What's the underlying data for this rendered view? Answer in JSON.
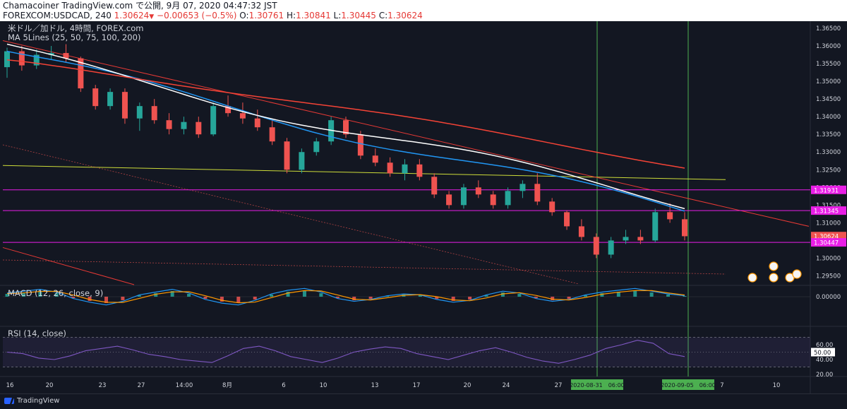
{
  "header": {
    "line1": "Chamacoiner TradingView.com で公開, 9月 07, 2020 04:47:32 JST",
    "symbol": "FOREXCOM:USDCAD, 240",
    "last": "1.30624",
    "arrow": "▼",
    "change": "−0.00653 (−0.5%)",
    "o_label": "O:",
    "o_value": "1.30761",
    "h_label": "H:",
    "h_value": "1.30841",
    "l_label": "L:",
    "l_value": "1.30445",
    "c_label": "C:",
    "c_value": "1.30624"
  },
  "legend": {
    "title": "米ドル／加ドル, 4時間, FOREX.com",
    "ma": "MA 5Lines (25, 50, 75, 100, 200)",
    "macd": "MACD (12, 26, close, 9)",
    "rsi": "RSI (14, close)"
  },
  "footer": {
    "brand": "TradingView"
  },
  "chart_data": {
    "type": "candlestick",
    "price_axis": {
      "range": [
        1.2925,
        1.367
      ],
      "ticks": [
        "1.36500",
        "1.36000",
        "1.35500",
        "1.35000",
        "1.34500",
        "1.34000",
        "1.33500",
        "1.33000",
        "1.32500",
        "1.32000",
        "1.31500",
        "1.31000",
        "1.30500",
        "1.30000",
        "1.29500"
      ]
    },
    "x_axis": {
      "tick_labels": [
        "16",
        "20",
        "23",
        "27",
        "14:00",
        "8月",
        "6",
        "10",
        "13",
        "17",
        "20",
        "24",
        "27",
        "31",
        "7",
        "10"
      ],
      "range_labels": [
        "2020-08-31　06:00",
        "2020-09-05　06:00"
      ]
    },
    "price_levels": [
      {
        "value": "1.31931",
        "color": "#e91ee6"
      },
      {
        "value": "1.31345",
        "color": "#e91ee6"
      },
      {
        "value": "1.30624",
        "color": "#ef5350"
      },
      {
        "value": "1.30447",
        "color": "#e91ee6"
      }
    ],
    "price_candles": [
      [
        1.354,
        1.3595,
        1.351,
        1.3585
      ],
      [
        1.3585,
        1.36,
        1.353,
        1.3545
      ],
      [
        1.3545,
        1.359,
        1.3535,
        1.3575
      ],
      [
        1.3575,
        1.36,
        1.356,
        1.358
      ],
      [
        1.358,
        1.3605,
        1.3555,
        1.3565
      ],
      [
        1.3565,
        1.357,
        1.347,
        1.348
      ],
      [
        1.348,
        1.349,
        1.342,
        1.343
      ],
      [
        1.343,
        1.348,
        1.342,
        1.347
      ],
      [
        1.347,
        1.348,
        1.338,
        1.3395
      ],
      [
        1.3395,
        1.344,
        1.336,
        1.343
      ],
      [
        1.343,
        1.345,
        1.338,
        1.339
      ],
      [
        1.339,
        1.341,
        1.335,
        1.3365
      ],
      [
        1.3365,
        1.34,
        1.335,
        1.3385
      ],
      [
        1.3385,
        1.34,
        1.334,
        1.335
      ],
      [
        1.335,
        1.344,
        1.3345,
        1.343
      ],
      [
        1.343,
        1.346,
        1.34,
        1.341
      ],
      [
        1.341,
        1.344,
        1.338,
        1.3395
      ],
      [
        1.3395,
        1.342,
        1.336,
        1.337
      ],
      [
        1.337,
        1.339,
        1.332,
        1.333
      ],
      [
        1.333,
        1.334,
        1.324,
        1.325
      ],
      [
        1.325,
        1.331,
        1.324,
        1.33
      ],
      [
        1.33,
        1.334,
        1.329,
        1.333
      ],
      [
        1.333,
        1.34,
        1.332,
        1.339
      ],
      [
        1.339,
        1.34,
        1.334,
        1.335
      ],
      [
        1.335,
        1.336,
        1.328,
        1.329
      ],
      [
        1.329,
        1.331,
        1.326,
        1.327
      ],
      [
        1.327,
        1.3285,
        1.323,
        1.324
      ],
      [
        1.324,
        1.328,
        1.322,
        1.3265
      ],
      [
        1.3265,
        1.328,
        1.322,
        1.323
      ],
      [
        1.323,
        1.324,
        1.317,
        1.318
      ],
      [
        1.318,
        1.319,
        1.314,
        1.315
      ],
      [
        1.315,
        1.321,
        1.314,
        1.32
      ],
      [
        1.32,
        1.322,
        1.317,
        1.318
      ],
      [
        1.318,
        1.319,
        1.314,
        1.315
      ],
      [
        1.315,
        1.32,
        1.314,
        1.319
      ],
      [
        1.319,
        1.322,
        1.317,
        1.321
      ],
      [
        1.321,
        1.324,
        1.315,
        1.316
      ],
      [
        1.316,
        1.317,
        1.312,
        1.313
      ],
      [
        1.313,
        1.3135,
        1.308,
        1.309
      ],
      [
        1.309,
        1.311,
        1.305,
        1.306
      ],
      [
        1.306,
        1.307,
        1.3,
        1.301
      ],
      [
        1.301,
        1.306,
        1.3,
        1.305
      ],
      [
        1.305,
        1.308,
        1.304,
        1.306
      ],
      [
        1.306,
        1.308,
        1.304,
        1.305
      ],
      [
        1.305,
        1.314,
        1.3045,
        1.313
      ],
      [
        1.313,
        1.3155,
        1.31,
        1.311
      ],
      [
        1.311,
        1.313,
        1.305,
        1.3062
      ]
    ],
    "moving_averages": [
      {
        "period": "25",
        "color": "#2196f3",
        "start": 1.3585,
        "end": 1.3133
      },
      {
        "period": "75",
        "color": "#ffffff",
        "start": 1.359,
        "end": 1.3155
      },
      {
        "period": "200",
        "color": "#f44336",
        "start": 1.3555,
        "end": 1.326
      }
    ],
    "trendlines": [
      {
        "color": "#cddc39",
        "from": 1.3262,
        "to": 1.3222
      },
      {
        "color": "#e53935",
        "from": 1.3615,
        "to": 1.309
      },
      {
        "color": "#e53935",
        "from": 1.303,
        "to": 1.2925
      }
    ],
    "macd": {
      "zero_label": "0.00000",
      "histogram": [
        0.4,
        0.6,
        0.8,
        0.5,
        -0.2,
        -0.6,
        -0.9,
        -0.5,
        0.2,
        0.5,
        0.8,
        0.4,
        -0.3,
        -0.7,
        -0.9,
        -0.4,
        0.3,
        0.7,
        0.9,
        0.5,
        -0.2,
        -0.5,
        -0.3,
        0.1,
        0.3,
        0.2,
        -0.3,
        -0.6,
        -0.4,
        0.2,
        0.6,
        0.4,
        -0.2,
        -0.5,
        -0.3,
        0.2,
        0.5,
        0.7,
        0.9,
        0.6,
        0.3,
        0.1
      ]
    },
    "rsi": {
      "ticks": [
        "60.00",
        "50.00",
        "40.00",
        "20.00"
      ],
      "current": "50.00",
      "values": [
        50,
        48,
        42,
        40,
        45,
        52,
        55,
        58,
        53,
        47,
        44,
        40,
        38,
        36,
        45,
        55,
        58,
        52,
        44,
        40,
        36,
        42,
        50,
        54,
        57,
        55,
        48,
        44,
        40,
        46,
        52,
        56,
        50,
        43,
        38,
        35,
        40,
        46,
        55,
        60,
        66,
        62,
        48,
        44
      ]
    }
  }
}
